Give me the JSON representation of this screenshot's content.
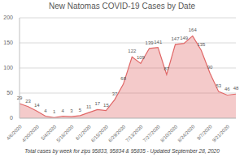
{
  "chart_data": {
    "type": "area",
    "title": "New Natomas COVID-19 Cases by Date",
    "subtitle": "Total cases by week for zips 95833, 95834 & 95835 - Updated September 28, 2020",
    "categories": [
      "4/6/2020",
      null,
      "4/20/2020",
      null,
      "5/4/2020",
      null,
      "5/18/2020",
      null,
      "6/1/2020",
      null,
      "6/15/2020",
      null,
      "6/29/2020",
      null,
      "7/13/2020",
      null,
      "7/27/2020",
      null,
      "8/10/2020",
      null,
      "8/24/2020",
      null,
      "9/7/2020",
      null,
      "9/21/2020",
      null
    ],
    "values": [
      29,
      23,
      14,
      4,
      1,
      4,
      3,
      5,
      11,
      17,
      15,
      37,
      68,
      122,
      109,
      139,
      141,
      87,
      147,
      149,
      164,
      135,
      90,
      53,
      46,
      48
    ],
    "color": "#e06666",
    "ylim": [
      0,
      200
    ],
    "yticks": [
      0,
      50,
      100,
      150,
      200
    ],
    "grid": true,
    "data_labels": true
  }
}
